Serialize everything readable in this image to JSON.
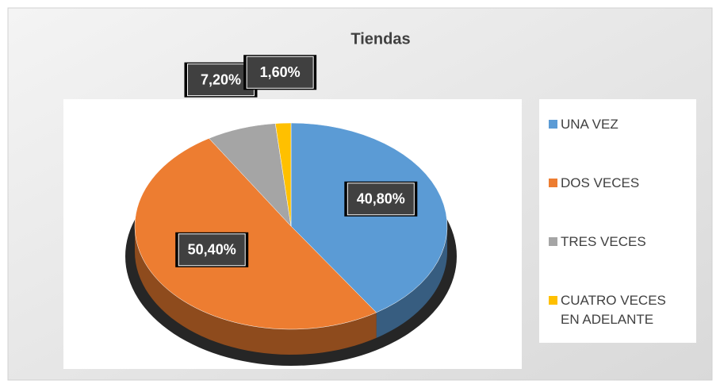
{
  "chart_data": {
    "type": "pie",
    "title": "Tiendas",
    "categories": [
      "UNA VEZ",
      "DOS VECES",
      "TRES VECES",
      "CUATRO VECES EN ADELANTE"
    ],
    "values": [
      40.8,
      50.4,
      7.2,
      1.6
    ],
    "value_labels": [
      "40,80%",
      "50,40%",
      "7,20%",
      "1,60%"
    ],
    "colors": [
      "#5b9bd5",
      "#ed7d31",
      "#a5a5a5",
      "#ffc000"
    ],
    "legend": "right"
  }
}
